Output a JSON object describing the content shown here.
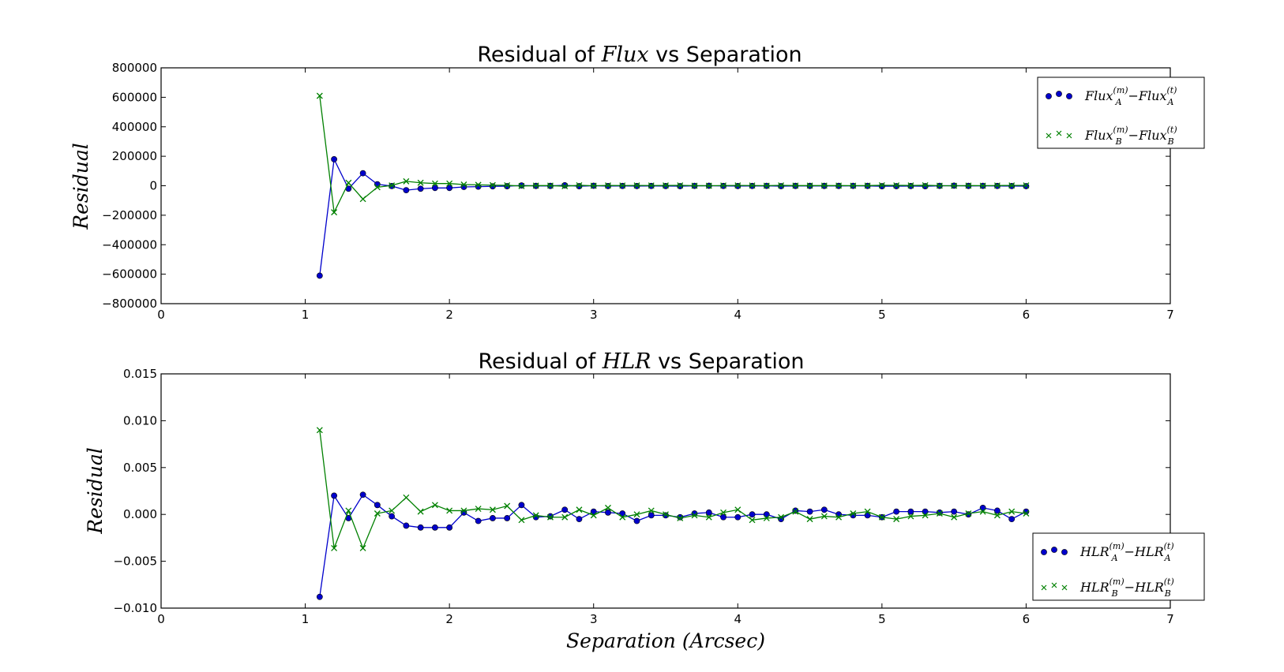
{
  "chart_data": [
    {
      "type": "line",
      "title_prefix": "Residual of ",
      "title_math": "Flux",
      "title_suffix": " vs Separation",
      "ylabel": "Residual",
      "xlabel": "",
      "xlim": [
        0,
        7
      ],
      "ylim": [
        -800000,
        800000
      ],
      "xticks": [
        0,
        1,
        2,
        3,
        4,
        5,
        6,
        7
      ],
      "yticks": [
        -800000,
        -600000,
        -400000,
        -200000,
        0,
        200000,
        400000,
        600000,
        800000
      ],
      "ytick_labels": [
        "−800000",
        "−600000",
        "−400000",
        "−200000",
        "0",
        "200000",
        "400000",
        "600000",
        "800000"
      ],
      "legend_position": "top-right",
      "x": [
        1.1,
        1.2,
        1.3,
        1.4,
        1.5,
        1.6,
        1.7,
        1.8,
        1.9,
        2.0,
        2.1,
        2.2,
        2.3,
        2.4,
        2.5,
        2.6,
        2.7,
        2.8,
        2.9,
        3.0,
        3.1,
        3.2,
        3.3,
        3.4,
        3.5,
        3.6,
        3.7,
        3.8,
        3.9,
        4.0,
        4.1,
        4.2,
        4.3,
        4.4,
        4.5,
        4.6,
        4.7,
        4.8,
        4.9,
        5.0,
        5.1,
        5.2,
        5.3,
        5.4,
        5.5,
        5.6,
        5.7,
        5.8,
        5.9,
        6.0
      ],
      "series": [
        {
          "name": "Flux_A^(m) − Flux_A^(t)",
          "legend_base": "Flux",
          "legend_sub": "A",
          "marker": "circle",
          "color": "#0000cc",
          "values": [
            -610000,
            180000,
            -20000,
            85000,
            10000,
            -2000,
            -30000,
            -20000,
            -15000,
            -15000,
            -8000,
            -6000,
            -4000,
            -3000,
            2000,
            -1000,
            -1000,
            3000,
            -3000,
            0,
            -2000,
            -1500,
            -2000,
            -1500,
            -2000,
            -2500,
            -500,
            0,
            -1500,
            -2000,
            -1500,
            -500,
            -2500,
            -1000,
            -1000,
            -1000,
            -1000,
            -500,
            -1000,
            -3000,
            -2500,
            -2000,
            -3000,
            -500,
            500,
            -1000,
            -500,
            -1500,
            -2000,
            -2500
          ]
        },
        {
          "name": "Flux_B^(m) − Flux_B^(t)",
          "legend_base": "Flux",
          "legend_sub": "B",
          "marker": "x",
          "color": "#008000",
          "values": [
            610000,
            -180000,
            20000,
            -90000,
            -10000,
            2000,
            30000,
            20000,
            15000,
            15000,
            8000,
            6000,
            4000,
            3000,
            -2000,
            1000,
            1000,
            -3000,
            3000,
            0,
            2000,
            1500,
            2000,
            1500,
            2000,
            2500,
            500,
            0,
            1500,
            2000,
            1500,
            500,
            2500,
            1000,
            1000,
            1000,
            1000,
            500,
            1000,
            3000,
            2500,
            2000,
            3000,
            500,
            -500,
            1000,
            500,
            1500,
            2000,
            2500
          ]
        }
      ]
    },
    {
      "type": "line",
      "title_prefix": "Residual of ",
      "title_math": "HLR",
      "title_suffix": " vs Separation",
      "ylabel": "Residual",
      "xlabel": "Separation (Arcsec)",
      "xlim": [
        0,
        7
      ],
      "ylim": [
        -0.01,
        0.015
      ],
      "xticks": [
        0,
        1,
        2,
        3,
        4,
        5,
        6,
        7
      ],
      "yticks": [
        -0.01,
        -0.005,
        0.0,
        0.005,
        0.01,
        0.015
      ],
      "ytick_labels": [
        "−0.010",
        "−0.005",
        "0.000",
        "0.005",
        "0.010",
        "0.015"
      ],
      "legend_position": "lower-right",
      "x": [
        1.1,
        1.2,
        1.3,
        1.4,
        1.5,
        1.6,
        1.7,
        1.8,
        1.9,
        2.0,
        2.1,
        2.2,
        2.3,
        2.4,
        2.5,
        2.6,
        2.7,
        2.8,
        2.9,
        3.0,
        3.1,
        3.2,
        3.3,
        3.4,
        3.5,
        3.6,
        3.7,
        3.8,
        3.9,
        4.0,
        4.1,
        4.2,
        4.3,
        4.4,
        4.5,
        4.6,
        4.7,
        4.8,
        4.9,
        5.0,
        5.1,
        5.2,
        5.3,
        5.4,
        5.5,
        5.6,
        5.7,
        5.8,
        5.9,
        6.0
      ],
      "series": [
        {
          "name": "HLR_A^(m) − HLR_A^(t)",
          "legend_base": "HLR",
          "legend_sub": "A",
          "marker": "circle",
          "color": "#0000cc",
          "values": [
            -0.0088,
            0.002,
            -0.0004,
            0.0021,
            0.001,
            -0.0002,
            -0.0012,
            -0.0014,
            -0.0014,
            -0.0014,
            0.0002,
            -0.0007,
            -0.0004,
            -0.0004,
            0.001,
            -0.0003,
            -0.0002,
            0.0005,
            -0.0005,
            0.0003,
            0.0002,
            0.0001,
            -0.0007,
            -0.0001,
            -0.0001,
            -0.0003,
            0.0001,
            0.0002,
            -0.0003,
            -0.0003,
            0.0,
            0.0,
            -0.0005,
            0.0004,
            0.0003,
            0.0005,
            0.0,
            -0.0001,
            -0.0001,
            -0.0003,
            0.0003,
            0.0003,
            0.0003,
            0.0002,
            0.0003,
            0.0,
            0.0007,
            0.0004,
            -0.0005,
            0.0003
          ]
        },
        {
          "name": "HLR_B^(m) − HLR_B^(t)",
          "legend_base": "HLR",
          "legend_sub": "B",
          "marker": "x",
          "color": "#008000",
          "values": [
            0.009,
            -0.0036,
            0.0004,
            -0.0036,
            0.0001,
            0.0004,
            0.0018,
            0.0003,
            0.001,
            0.0004,
            0.0004,
            0.0006,
            0.0005,
            0.0009,
            -0.0006,
            -0.0001,
            -0.0003,
            -0.0003,
            0.0005,
            -0.0001,
            0.0007,
            -0.0003,
            0.0,
            0.0004,
            0.0,
            -0.0004,
            -0.0001,
            -0.0003,
            0.0002,
            0.0005,
            -0.0006,
            -0.0004,
            -0.0003,
            0.0003,
            -0.0005,
            -0.0002,
            -0.0003,
            0.0001,
            0.0003,
            -0.0003,
            -0.0005,
            -0.0002,
            -0.0001,
            0.0001,
            -0.0003,
            0.0001,
            0.0003,
            -0.0001,
            0.0003,
            0.0001
          ]
        }
      ]
    }
  ]
}
